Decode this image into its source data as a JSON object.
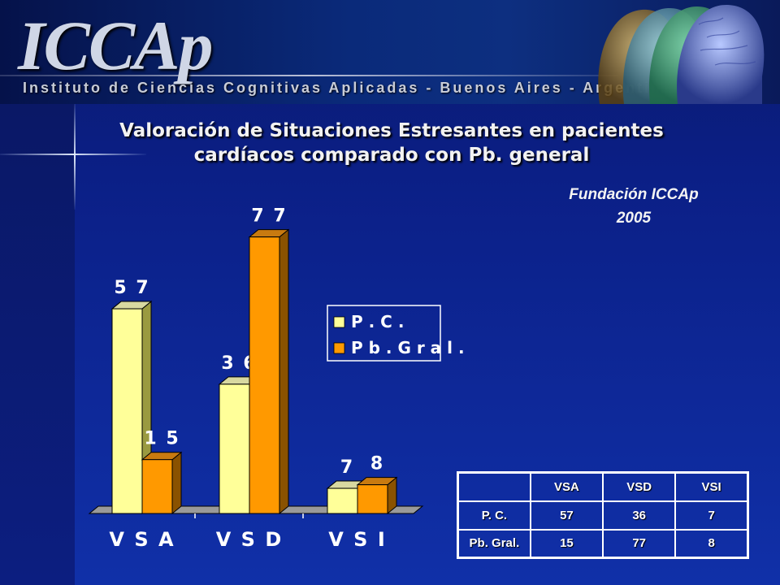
{
  "banner": {
    "logo_text": "ICCAp",
    "subtitle": "Instituto de Ciencias Cognitivas Aplicadas - Buenos Aires - Argentina"
  },
  "title_line1": "Valoración de Situaciones Estresantes en pacientes",
  "title_line2": "cardíacos comparado con Pb. general",
  "source_line1": "Fundación ICCAp",
  "source_line2": "2005",
  "colors": {
    "series_pc": "#ffff99",
    "series_pbgral": "#ff9900",
    "label_text": "#ffffff"
  },
  "chart_data": {
    "type": "bar",
    "categories": [
      "V S A",
      "V S D",
      "V S I"
    ],
    "series": [
      {
        "name": "P . C .",
        "values": [
          57,
          36,
          7
        ]
      },
      {
        "name": "P b . G r a l .",
        "values": [
          15,
          77,
          8
        ]
      }
    ],
    "data_labels": [
      [
        "5 7",
        "3 6",
        "7"
      ],
      [
        "1 5",
        "7 7",
        "8"
      ]
    ],
    "ylim": [
      0,
      80
    ],
    "grid": false,
    "legend_position": "right"
  },
  "table": {
    "header": [
      "",
      "VSA",
      "VSD",
      "VSI"
    ],
    "rows": [
      [
        "P. C.",
        "57",
        "36",
        "7"
      ],
      [
        "Pb. Gral.",
        "15",
        "77",
        "8"
      ]
    ]
  }
}
